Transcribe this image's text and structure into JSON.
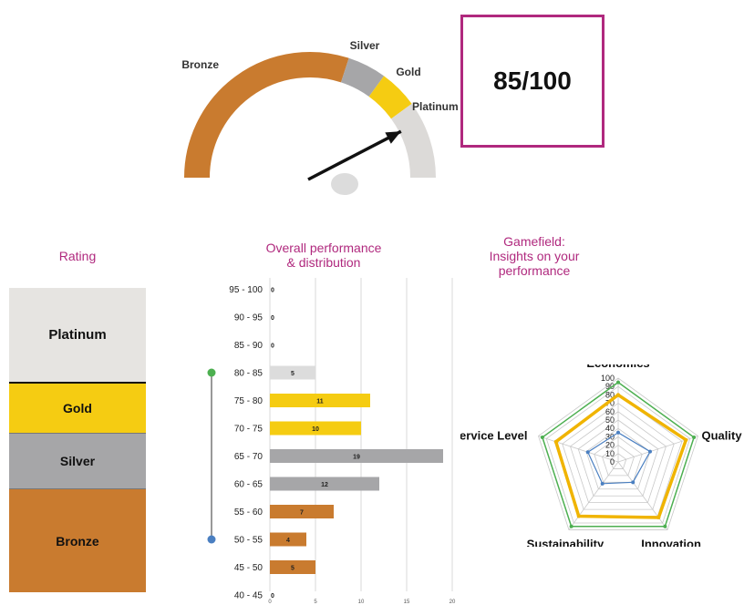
{
  "score": {
    "text": "85/100"
  },
  "gauge": {
    "segments": [
      {
        "label": "Bronze",
        "from": 0,
        "to": 60,
        "color": "#c97b2f"
      },
      {
        "label": "Silver",
        "from": 60,
        "to": 70,
        "color": "#a6a6a8"
      },
      {
        "label": "Gold",
        "from": 70,
        "to": 80,
        "color": "#f5cc12"
      },
      {
        "label": "Platinum",
        "from": 80,
        "to": 100,
        "color": "#dcdad8"
      }
    ],
    "value": 85,
    "min": 0,
    "max": 100
  },
  "rating": {
    "title": "Rating",
    "tiers": [
      {
        "label": "Platinum",
        "color": "#e6e4e1"
      },
      {
        "label": "Gold",
        "color": "#f5cc12"
      },
      {
        "label": "Silver",
        "color": "#a6a6a8"
      },
      {
        "label": "Bronze",
        "color": "#c97b2f"
      }
    ]
  },
  "distribution": {
    "title_line1": "Overall performance",
    "title_line2": "& distribution"
  },
  "gamefield": {
    "title_line1": "Gamefield:",
    "title_line2": "Insights on your",
    "title_line3": "performance"
  },
  "chart_data": [
    {
      "type": "bar",
      "orientation": "horizontal",
      "categories": [
        "95 - 100",
        "90 - 95",
        "85 - 90",
        "80 - 85",
        "75 - 80",
        "70 - 75",
        "65 - 70",
        "60 - 65",
        "55 - 60",
        "50 - 55",
        "45 - 50",
        "40 - 45"
      ],
      "values": [
        0,
        0,
        0,
        5,
        11,
        10,
        19,
        12,
        7,
        4,
        5,
        0
      ],
      "colors": [
        "#dcdcdc",
        "#dcdcdc",
        "#dcdcdc",
        "#dcdcdc",
        "#f5cc12",
        "#f5cc12",
        "#a6a6a8",
        "#a6a6a8",
        "#c97b2f",
        "#c97b2f",
        "#c97b2f",
        "#c97b2f"
      ],
      "x_ticks": [
        0,
        5,
        10,
        15,
        20
      ],
      "xlim": [
        0,
        20
      ],
      "grid": true,
      "range_marker": {
        "from": "80 - 85",
        "to": "50 - 55",
        "top_color": "#4caf50",
        "bottom_color": "#4a7fc1"
      }
    },
    {
      "type": "radar",
      "axes": [
        "Economics",
        "Quality",
        "Innovation",
        "Sustainability",
        "Service Level"
      ],
      "r_ticks": [
        0,
        10,
        20,
        30,
        40,
        50,
        60,
        70,
        80,
        90,
        100
      ],
      "rlim": [
        0,
        100
      ],
      "series": [
        {
          "values": [
            95,
            95,
            95,
            95,
            95
          ],
          "color": "#4caf50"
        },
        {
          "values": [
            80,
            85,
            82,
            80,
            78
          ],
          "color": "#f0b400"
        },
        {
          "values": [
            35,
            40,
            30,
            32,
            38
          ],
          "color": "#4a7fc1"
        }
      ]
    }
  ]
}
